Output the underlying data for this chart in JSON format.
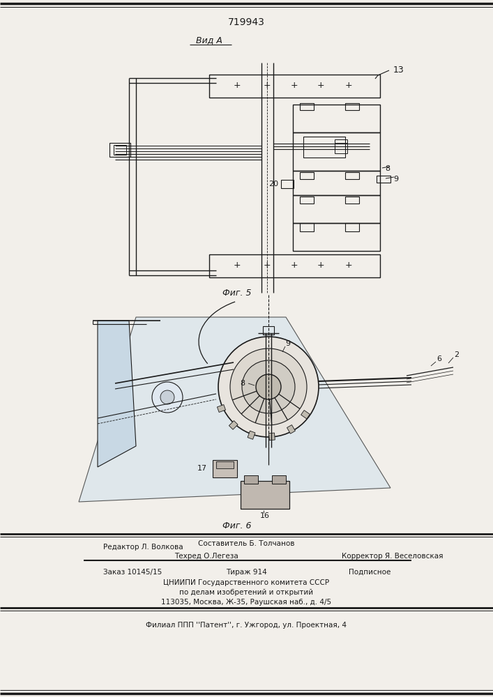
{
  "patent_number": "719943",
  "view_label": "Вид А",
  "fig5_label": "Фиг. 5",
  "fig6_label": "Фиг. 6",
  "bg_color": "#f2efea",
  "line_color": "#1a1a1a",
  "footer_line1_left": "Редактор Л. Волкова",
  "footer_line1_center": "Составитель Б. Толчанов",
  "footer_line2_center": "Техред О.Легеза",
  "footer_line2_right": "Корректор Я. Веселовская",
  "footer_order": "Заказ 10145/15",
  "footer_tirazh": "Тираж 914",
  "footer_podpisnoe": "Подписное",
  "footer_tsniipi": "ЦНИИПИ Государственного комитета СССР",
  "footer_dela": "по делам изобретений и открытий",
  "footer_address": "113035, Москва, Ж-35, Раушская наб., д. 4/5",
  "footer_filial": "Филиал ППП ''Патент'', г. Ужгород, ул. Проектная, 4"
}
